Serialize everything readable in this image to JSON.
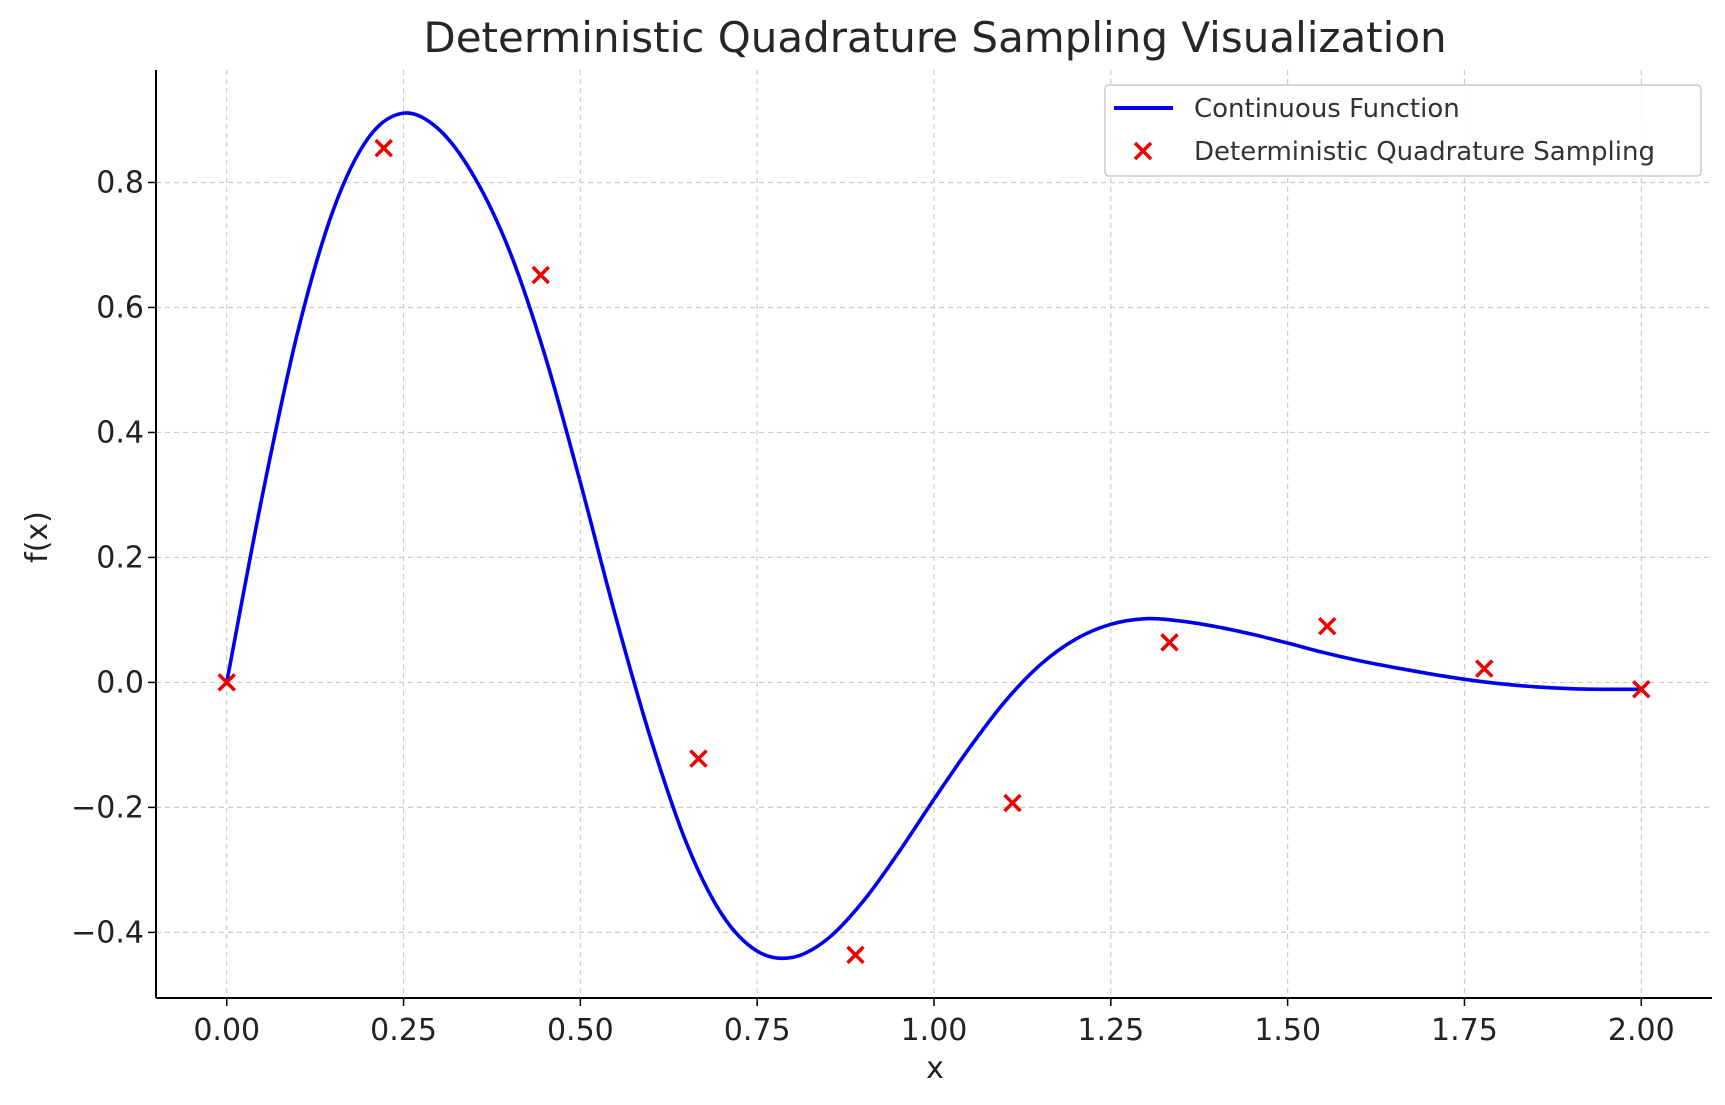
{
  "chart_data": {
    "type": "line",
    "title": "Deterministic Quadrature Sampling Visualization",
    "xlabel": "x",
    "ylabel": "f(x)",
    "xlim": [
      -0.1,
      2.1
    ],
    "ylim": [
      -0.505,
      0.98
    ],
    "x_ticks": [
      0.0,
      0.25,
      0.5,
      0.75,
      1.0,
      1.25,
      1.5,
      1.75,
      2.0
    ],
    "x_tick_labels": [
      "0.00",
      "0.25",
      "0.50",
      "0.75",
      "1.00",
      "1.25",
      "1.50",
      "1.75",
      "2.00"
    ],
    "y_ticks": [
      -0.4,
      -0.2,
      0.0,
      0.2,
      0.4,
      0.6,
      0.8
    ],
    "y_tick_labels": [
      "−0.4",
      "−0.2",
      "0.0",
      "0.2",
      "0.4",
      "0.6",
      "0.8"
    ],
    "grid": true,
    "legend_position": "top-right",
    "colors": {
      "line": "#0000ee",
      "markers": "#ee0000",
      "grid": "#cccccc",
      "axes": "#000000",
      "text": "#222222"
    },
    "series": [
      {
        "name": "Continuous Function",
        "kind": "line",
        "x": [
          0.0,
          0.05,
          0.1,
          0.15,
          0.2,
          0.25,
          0.3,
          0.35,
          0.4,
          0.45,
          0.5,
          0.55,
          0.6,
          0.65,
          0.7,
          0.75,
          0.8,
          0.85,
          0.9,
          0.95,
          1.0,
          1.05,
          1.1,
          1.15,
          1.2,
          1.25,
          1.3,
          1.35,
          1.4,
          1.45,
          1.5,
          1.55,
          1.6,
          1.65,
          1.7,
          1.75,
          1.8,
          1.85,
          1.9,
          1.95,
          2.0
        ],
        "y": [
          0.0,
          0.297,
          0.559,
          0.754,
          0.871,
          0.911,
          0.885,
          0.809,
          0.69,
          0.523,
          0.32,
          0.105,
          -0.092,
          -0.257,
          -0.371,
          -0.43,
          -0.44,
          -0.41,
          -0.35,
          -0.272,
          -0.187,
          -0.105,
          -0.031,
          0.028,
          0.069,
          0.093,
          0.102,
          0.098,
          0.089,
          0.077,
          0.063,
          0.048,
          0.035,
          0.024,
          0.014,
          0.005,
          -0.002,
          -0.007,
          -0.01,
          -0.011,
          -0.011
        ]
      },
      {
        "name": "Deterministic Quadrature Sampling",
        "kind": "scatter",
        "marker": "x",
        "x": [
          0.0,
          0.222,
          0.444,
          0.667,
          0.889,
          1.111,
          1.333,
          1.556,
          1.778,
          2.0
        ],
        "y": [
          0.0,
          0.855,
          0.652,
          -0.122,
          -0.436,
          -0.193,
          0.064,
          0.09,
          0.022,
          -0.011
        ]
      }
    ]
  }
}
